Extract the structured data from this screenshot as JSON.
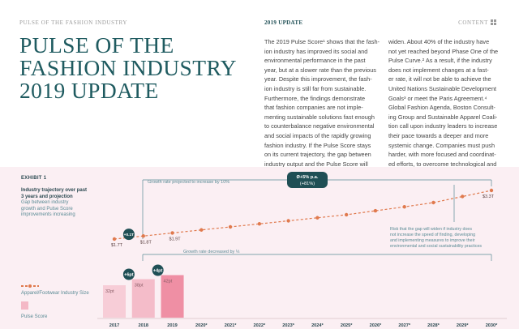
{
  "header": {
    "left": "PULSE OF THE FASHION INDUSTRY",
    "center": "2019 UPDATE",
    "right": "CONTENT"
  },
  "title_lines": [
    "PULSE OF THE",
    "FASHION INDUSTRY",
    "2019 UPDATE"
  ],
  "body_col1": [
    "The 2019 Pulse Score¹ shows that the fash-",
    "ion industry has improved its social and",
    "environmental performance in the past",
    "year, but at a slower rate than the previous",
    "year. Despite this improvement, the fash-",
    "ion industry is still far from sustainable.",
    "Furthermore, the findings demonstrate",
    "that fashion companies are not imple-",
    "menting sustainable solutions fast enough",
    "to counterbalance negative environmental",
    "and social impacts of the rapidly growing",
    "fashion industry. If the Pulse Score stays",
    "on its current trajectory, the gap between",
    "industry output and the Pulse Score will"
  ],
  "body_col2": [
    "widen. About 40% of the industry have",
    "not yet reached beyond Phase One of the",
    "Pulse Curve.² As a result, if the industry",
    "does not implement changes at a fast-",
    "er rate, it will not be able to achieve the",
    "United Nations Sustainable Development",
    "Goals³ or meet the Paris Agreement.⁴",
    "Global Fashion Agenda, Boston Consult-",
    "ing Group and Sustainable Apparel Coali-",
    "tion call upon industry leaders to increase",
    "their pace towards a deeper and more",
    "systemic change. Companies must push",
    "harder, with more focused and coordinat-",
    "ed efforts, to overcome technological and",
    "economic limitations that hinder progress."
  ],
  "exhibit": {
    "label": "EXHIBIT 1",
    "subtitle_lines": [
      "Industry trajectory over past",
      "3 years and projection"
    ],
    "desc_lines": [
      "Gap between industry",
      "growth and Pulse Score",
      "improvements increasing"
    ],
    "legend_line": "Apparel/Footwear Industry Size",
    "legend_box": "Pulse Score",
    "growth_note": "Growth rate projected to increase by 10%",
    "cagr_line1": "Ø+5% p.a.",
    "cagr_line2": "(+81%)",
    "decrease_note": "Growth rate decreased by ⅓",
    "risk_note_lines": [
      "Risk that the gap will widen if industry does",
      "not increase the speed of finding, developing",
      "and implementing measures to improve their",
      "environmental and social sustainability practices"
    ]
  },
  "chart_data": {
    "type": "line",
    "x": [
      "2017",
      "2018",
      "2019",
      "2020*",
      "2021*",
      "2022*",
      "2023*",
      "2024*",
      "2025*",
      "2026*",
      "2027*",
      "2028*",
      "2029*",
      "2030*"
    ],
    "industry_size": [
      1.7,
      1.8,
      1.9,
      2.0,
      2.1,
      2.2,
      2.3,
      2.4,
      2.5,
      2.63,
      2.76,
      2.9,
      3.1,
      3.3
    ],
    "industry_labels": [
      "$1.7T",
      "$1.8T",
      "$1.9T",
      "",
      "",
      "",
      "",
      "",
      "",
      "",
      "",
      "",
      "",
      "$3.3T"
    ],
    "pulse_score": [
      32,
      38,
      42
    ],
    "pulse_labels": [
      "32pt",
      "38pt",
      "42pt"
    ],
    "pulse_deltas": [
      "+6pt",
      "+4pt"
    ],
    "industry_delta": "+0.1T",
    "colors": {
      "line": "#e07a4e",
      "bar_2017": "#f7cdd7",
      "bar_2018": "#f4bcc9",
      "bar_2019": "#ef8fa4",
      "badge": "#1f4f55",
      "annotation": "#5a8b95"
    }
  }
}
